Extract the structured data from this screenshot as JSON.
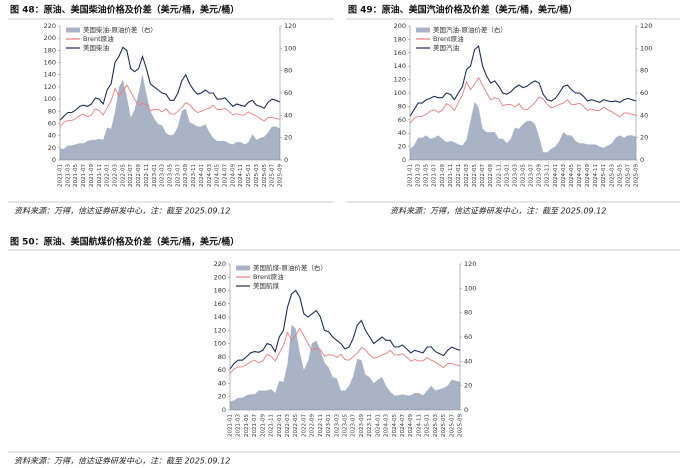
{
  "chart_data": [
    {
      "type": "line",
      "title": "图 48：原油、美国柴油价格及价差（美元/桶，美元/桶）",
      "source": "资料来源：万得，信达证券研发中心，注：截至 2025.09.12",
      "categories": [
        "2021-01",
        null,
        "2021-03",
        null,
        "2021-05",
        null,
        "2021-07",
        null,
        "2021-09",
        null,
        "2021-11",
        null,
        "2022-01",
        null,
        "2022-03",
        null,
        "2022-05",
        null,
        "2022-07",
        null,
        "2022-09",
        null,
        "2022-11",
        null,
        "2023-01",
        null,
        "2023-03",
        null,
        "2023-05",
        null,
        "2023-07",
        null,
        "2023-09",
        null,
        "2023-11",
        null,
        "2024-01",
        null,
        "2024-03",
        null,
        "2024-05",
        null,
        "2024-07",
        null,
        "2024-09",
        null,
        "2024-11",
        null,
        "2025-01",
        null,
        "2025-03",
        null,
        "2025-05",
        null,
        "2025-07",
        null,
        "2025-09"
      ],
      "ylim": [
        0,
        220
      ],
      "yticks": [
        0,
        20,
        40,
        60,
        80,
        100,
        120,
        140,
        160,
        180,
        200,
        220
      ],
      "y2lim": [
        0,
        120
      ],
      "y2ticks": [
        0,
        20,
        40,
        60,
        80,
        100,
        120
      ],
      "legend": "upper left",
      "series": [
        {
          "name": "美国柴油-原油价差（右）",
          "type": "area",
          "axis": "y2",
          "color": "#a9b3c6",
          "values": [
            10,
            10,
            13,
            13,
            14,
            15,
            15,
            17,
            18,
            18,
            19,
            18,
            29,
            28,
            43,
            65,
            72,
            57,
            38,
            45,
            60,
            77,
            59,
            44,
            37,
            32,
            31,
            24,
            22,
            23,
            30,
            44,
            46,
            34,
            32,
            30,
            30,
            32,
            25,
            20,
            17,
            17,
            17,
            15,
            14,
            16,
            16,
            14,
            16,
            23,
            18,
            20,
            21,
            25,
            30,
            30,
            28
          ]
        },
        {
          "name": "Brent原油",
          "color": "#f07c7c",
          "values": [
            55,
            62,
            65,
            65,
            68,
            73,
            75,
            71,
            74,
            84,
            81,
            74,
            86,
            97,
            117,
            105,
            113,
            123,
            112,
            100,
            90,
            93,
            91,
            81,
            83,
            83,
            79,
            84,
            76,
            75,
            80,
            86,
            94,
            91,
            83,
            78,
            80,
            83,
            85,
            90,
            83,
            83,
            85,
            80,
            74,
            76,
            74,
            74,
            79,
            75,
            72,
            68,
            64,
            70,
            70,
            68,
            67
          ]
        },
        {
          "name": "美国柴油",
          "color": "#1f2d5c",
          "values": [
            65,
            72,
            78,
            78,
            82,
            88,
            90,
            88,
            92,
            102,
            100,
            92,
            115,
            125,
            160,
            170,
            185,
            180,
            150,
            145,
            150,
            170,
            150,
            125,
            120,
            115,
            110,
            108,
            98,
            98,
            110,
            130,
            140,
            125,
            115,
            108,
            110,
            115,
            110,
            110,
            100,
            100,
            102,
            95,
            88,
            92,
            90,
            88,
            95,
            98,
            90,
            88,
            85,
            95,
            100,
            98,
            95
          ]
        }
      ]
    },
    {
      "type": "line",
      "title": "图 49：原油、美国汽油价格及价差（美元/桶，美元/桶）",
      "source": "资料来源：万得，信达证券研发中心，注：截至 2025.09.12",
      "categories": [
        "2021-01",
        null,
        "2021-03",
        null,
        "2021-05",
        null,
        "2021-07",
        null,
        "2021-09",
        null,
        "2021-11",
        null,
        "2022-01",
        null,
        "2022-03",
        null,
        "2022-05",
        null,
        "2022-07",
        null,
        "2022-09",
        null,
        "2022-11",
        null,
        "2023-01",
        null,
        "2023-03",
        null,
        "2023-05",
        null,
        "2023-07",
        null,
        "2023-09",
        null,
        "2023-11",
        null,
        "2024-01",
        null,
        "2024-03",
        null,
        "2024-05",
        null,
        "2024-07",
        null,
        "2024-09",
        null,
        "2024-11",
        null,
        "2025-01",
        null,
        "2025-03",
        null,
        "2025-05",
        null,
        "2025-07",
        null,
        "2025-09"
      ],
      "ylim": [
        0,
        200
      ],
      "yticks": [
        0,
        20,
        40,
        60,
        80,
        100,
        120,
        140,
        160,
        180,
        200
      ],
      "y2lim": [
        0,
        120
      ],
      "y2ticks": [
        0,
        20,
        40,
        60,
        80,
        100,
        120
      ],
      "legend": "upper left",
      "series": [
        {
          "name": "美国汽油-原油价差（右）",
          "type": "area",
          "axis": "y2",
          "color": "#a9b3c6",
          "values": [
            10,
            13,
            20,
            20,
            22,
            19,
            20,
            22,
            19,
            16,
            17,
            16,
            14,
            13,
            18,
            35,
            52,
            47,
            28,
            25,
            25,
            25,
            19,
            19,
            15,
            19,
            29,
            28,
            32,
            35,
            35,
            32,
            21,
            7,
            7,
            10,
            12,
            17,
            25,
            22,
            22,
            17,
            15,
            15,
            14,
            14,
            14,
            12,
            11,
            13,
            15,
            20,
            22,
            20,
            22,
            22,
            21
          ]
        },
        {
          "name": "Brent原油",
          "color": "#f07c7c",
          "values": [
            55,
            62,
            65,
            65,
            68,
            73,
            75,
            71,
            74,
            84,
            81,
            74,
            86,
            97,
            117,
            105,
            113,
            123,
            112,
            100,
            90,
            93,
            91,
            81,
            83,
            83,
            79,
            84,
            76,
            75,
            80,
            86,
            94,
            91,
            83,
            78,
            80,
            83,
            85,
            90,
            83,
            83,
            85,
            80,
            74,
            76,
            74,
            74,
            79,
            75,
            72,
            68,
            64,
            70,
            70,
            68,
            67
          ]
        },
        {
          "name": "美国汽油",
          "color": "#1f2d5c",
          "values": [
            65,
            75,
            85,
            85,
            90,
            92,
            95,
            93,
            93,
            100,
            98,
            90,
            100,
            110,
            135,
            140,
            165,
            170,
            140,
            125,
            115,
            118,
            110,
            100,
            98,
            102,
            108,
            112,
            108,
            110,
            115,
            118,
            115,
            98,
            90,
            88,
            92,
            100,
            110,
            112,
            105,
            100,
            100,
            95,
            88,
            90,
            88,
            86,
            90,
            88,
            87,
            88,
            86,
            90,
            92,
            90,
            88
          ]
        }
      ]
    },
    {
      "type": "line",
      "title": "图 50：原油、美国航煤价格及价差（美元/桶，美元/桶）",
      "source": "资料来源：万得，信达证券研发中心，注：截至 2025.09.12",
      "categories": [
        "2021-01",
        null,
        "2021-03",
        null,
        "2021-05",
        null,
        "2021-07",
        null,
        "2021-09",
        null,
        "2021-11",
        null,
        "2022-01",
        null,
        "2022-03",
        null,
        "2022-05",
        null,
        "2022-07",
        null,
        "2022-09",
        null,
        "2022-11",
        null,
        "2023-01",
        null,
        "2023-03",
        null,
        "2023-05",
        null,
        "2023-07",
        null,
        "2023-09",
        null,
        "2023-11",
        null,
        "2024-01",
        null,
        "2024-03",
        null,
        "2024-05",
        null,
        "2024-07",
        null,
        "2024-09",
        null,
        "2024-11",
        null,
        "2025-01",
        null,
        "2025-03",
        null,
        "2025-05",
        null,
        "2025-07",
        null,
        "2025-09"
      ],
      "ylim": [
        0,
        220
      ],
      "yticks": [
        0,
        20,
        40,
        60,
        80,
        100,
        120,
        140,
        160,
        180,
        200,
        220
      ],
      "y2lim": [
        0,
        120
      ],
      "y2ticks": [
        0,
        20,
        40,
        60,
        80,
        100,
        120
      ],
      "legend": "upper left",
      "series": [
        {
          "name": "美国航煤-原油价差（右）",
          "type": "area",
          "axis": "y2",
          "color": "#a9b3c6",
          "values": [
            7,
            8,
            10,
            10,
            12,
            13,
            13,
            16,
            16,
            16,
            17,
            14,
            24,
            23,
            38,
            70,
            67,
            47,
            33,
            40,
            55,
            57,
            49,
            39,
            35,
            27,
            26,
            16,
            16,
            20,
            28,
            42,
            41,
            29,
            27,
            22,
            25,
            27,
            20,
            15,
            12,
            12,
            13,
            12,
            12,
            14,
            14,
            12,
            16,
            20,
            16,
            17,
            18,
            20,
            25,
            24,
            23
          ]
        },
        {
          "name": "Brent原油",
          "color": "#f07c7c",
          "values": [
            55,
            62,
            65,
            65,
            68,
            73,
            75,
            71,
            74,
            84,
            81,
            74,
            86,
            97,
            117,
            105,
            113,
            123,
            112,
            100,
            90,
            93,
            91,
            81,
            83,
            83,
            79,
            84,
            76,
            75,
            80,
            86,
            94,
            91,
            83,
            78,
            80,
            83,
            85,
            90,
            83,
            83,
            85,
            80,
            74,
            76,
            74,
            74,
            79,
            75,
            72,
            68,
            64,
            70,
            70,
            68,
            67
          ]
        },
        {
          "name": "美国航煤",
          "color": "#1f2d5c",
          "values": [
            62,
            70,
            75,
            75,
            80,
            86,
            88,
            87,
            90,
            100,
            98,
            88,
            110,
            120,
            155,
            175,
            180,
            170,
            145,
            140,
            145,
            150,
            140,
            120,
            118,
            110,
            105,
            100,
            92,
            95,
            108,
            128,
            135,
            120,
            110,
            100,
            105,
            110,
            105,
            105,
            95,
            95,
            98,
            92,
            86,
            90,
            88,
            86,
            95,
            95,
            88,
            85,
            82,
            90,
            95,
            92,
            90
          ]
        }
      ]
    }
  ]
}
